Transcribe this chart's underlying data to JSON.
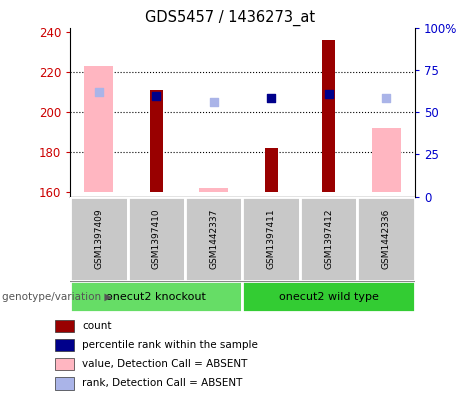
{
  "title": "GDS5457 / 1436273_at",
  "samples": [
    "GSM1397409",
    "GSM1397410",
    "GSM1442337",
    "GSM1397411",
    "GSM1397412",
    "GSM1442336"
  ],
  "groups": [
    {
      "label": "onecut2 knockout",
      "samples": [
        0,
        1,
        2
      ],
      "color": "#66dd66"
    },
    {
      "label": "onecut2 wild type",
      "samples": [
        3,
        4,
        5
      ],
      "color": "#33cc33"
    }
  ],
  "ylim_left": [
    158,
    242
  ],
  "ylim_right": [
    0,
    100
  ],
  "yticks_left": [
    160,
    180,
    200,
    220,
    240
  ],
  "yticks_right": [
    0,
    25,
    50,
    75,
    100
  ],
  "yticklabels_right": [
    "0",
    "25",
    "50",
    "75",
    "100%"
  ],
  "bar_base": 160,
  "count_values": [
    null,
    211,
    null,
    182,
    236,
    null
  ],
  "count_color": "#990000",
  "absent_value_values": [
    223,
    null,
    162,
    null,
    null,
    192
  ],
  "absent_value_color": "#ffb6c1",
  "percentile_rank_values": [
    null,
    208,
    null,
    207,
    209,
    null
  ],
  "percentile_rank_color": "#00008B",
  "absent_rank_values": [
    210,
    null,
    205,
    null,
    null,
    207
  ],
  "absent_rank_color": "#aab4e8",
  "count_bar_width": 0.22,
  "absent_bar_width": 0.5,
  "scatter_marker_size": 35,
  "legend_items": [
    {
      "label": "count",
      "color": "#990000"
    },
    {
      "label": "percentile rank within the sample",
      "color": "#00008B"
    },
    {
      "label": "value, Detection Call = ABSENT",
      "color": "#ffb6c1"
    },
    {
      "label": "rank, Detection Call = ABSENT",
      "color": "#aab4e8"
    }
  ],
  "ylabel_left_color": "#cc0000",
  "ylabel_right_color": "#0000cc",
  "group_label": "genotype/variation",
  "tick_label_area_color": "#c8c8c8",
  "tick_label_border_color": "#ffffff",
  "grid_yticks": [
    180,
    200,
    220
  ]
}
